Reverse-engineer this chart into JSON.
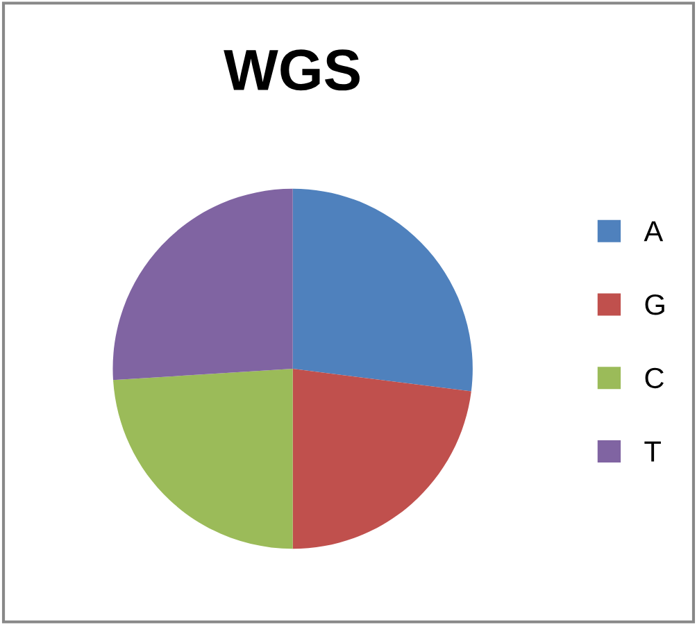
{
  "chart_data": {
    "type": "pie",
    "title": "WGS",
    "categories": [
      "A",
      "G",
      "C",
      "T"
    ],
    "values": [
      27,
      23,
      24,
      26
    ],
    "colors": [
      "#4f81bd",
      "#c0504d",
      "#9bbb59",
      "#8064a2"
    ],
    "legend": "right"
  }
}
